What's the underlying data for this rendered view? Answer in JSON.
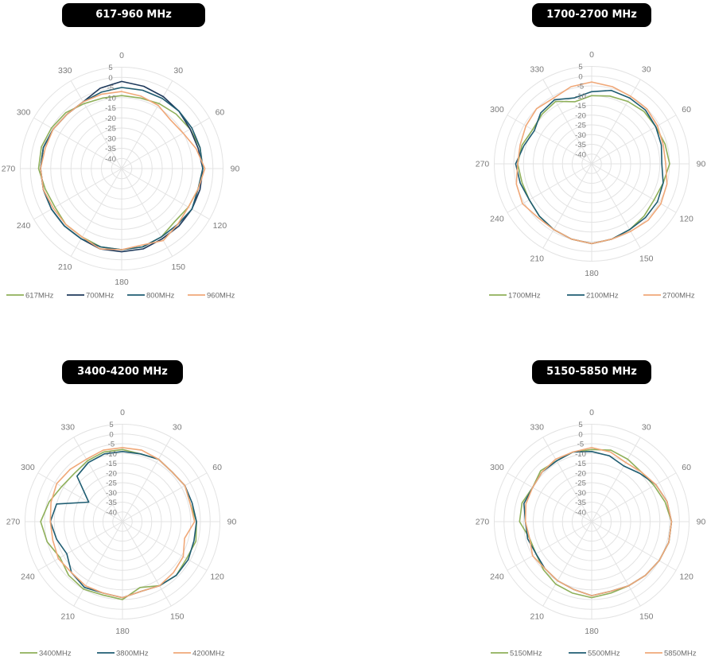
{
  "chart_data": [
    {
      "type": "polar",
      "title": "617-960 MHz",
      "angular_ticks": [
        "0",
        "30",
        "60",
        "90",
        "120",
        "150",
        "180",
        "210",
        "240",
        "270",
        "300",
        "330"
      ],
      "radial_ticks": [
        "5",
        "0",
        "-5",
        "-10",
        "-15",
        "-20",
        "-25",
        "-30",
        "-35",
        "-40"
      ],
      "rlim": [
        -45,
        5
      ],
      "grid": true,
      "legend_position": "bottom",
      "theta": [
        0,
        15,
        30,
        45,
        60,
        75,
        90,
        105,
        120,
        135,
        150,
        165,
        180,
        195,
        210,
        225,
        240,
        255,
        270,
        285,
        300,
        315,
        330,
        345
      ],
      "series": [
        {
          "name": "617MHz",
          "color": "#8fb05a",
          "values": [
            -9,
            -9,
            -8,
            -7,
            -6,
            -5,
            -5,
            -6,
            -7,
            -8,
            -6,
            -5,
            -5,
            -5,
            -6,
            -6,
            -7,
            -6,
            -4,
            -4,
            -5,
            -6,
            -8,
            -9
          ]
        },
        {
          "name": "700MHz",
          "color": "#1f3a5c",
          "values": [
            -2,
            -3,
            -4,
            -5,
            -6,
            -6,
            -5,
            -5,
            -5,
            -5,
            -5,
            -4,
            -4,
            -4,
            -5,
            -5,
            -5,
            -5,
            -5,
            -5,
            -6,
            -7,
            -7,
            -4
          ]
        },
        {
          "name": "800MHz",
          "color": "#1f5d72",
          "values": [
            -5,
            -5,
            -5,
            -5,
            -5,
            -5,
            -5,
            -6,
            -5,
            -6,
            -6,
            -5,
            -5,
            -5,
            -5,
            -5,
            -5,
            -5,
            -5,
            -5,
            -6,
            -7,
            -7,
            -6
          ]
        },
        {
          "name": "960MHz",
          "color": "#f0a878",
          "values": [
            -7,
            -8,
            -9,
            -11,
            -10,
            -7,
            -4,
            -6,
            -7,
            -6,
            -4,
            -6,
            -5,
            -4,
            -6,
            -6,
            -6,
            -5,
            -5,
            -6,
            -6,
            -7,
            -7,
            -7
          ]
        }
      ]
    },
    {
      "type": "polar",
      "title": "1700-2700 MHz",
      "angular_ticks": [
        "0",
        "30",
        "60",
        "90",
        "120",
        "150",
        "180",
        "210",
        "240",
        "270",
        "300",
        "330"
      ],
      "radial_ticks": [
        "5",
        "0",
        "-5",
        "-10",
        "-15",
        "-20",
        "-25",
        "-30",
        "-35",
        "-40"
      ],
      "rlim": [
        -45,
        5
      ],
      "grid": true,
      "legend_position": "bottom",
      "theta": [
        0,
        15,
        30,
        45,
        60,
        75,
        90,
        105,
        120,
        135,
        150,
        165,
        180,
        195,
        210,
        225,
        240,
        255,
        270,
        285,
        300,
        315,
        330,
        345
      ],
      "series": [
        {
          "name": "1700MHz",
          "color": "#8fb05a",
          "values": [
            -10,
            -9,
            -8,
            -7,
            -7,
            -6,
            -5,
            -7,
            -8,
            -7,
            -6,
            -5,
            -4,
            -5,
            -6,
            -7,
            -8,
            -8,
            -7,
            -8,
            -10,
            -9,
            -8,
            -12
          ]
        },
        {
          "name": "2100MHz",
          "color": "#1f5d72",
          "values": [
            -8,
            -6,
            -6,
            -6,
            -7,
            -8,
            -9,
            -7,
            -6,
            -6,
            -6,
            -5,
            -4,
            -5,
            -6,
            -7,
            -8,
            -7,
            -6,
            -9,
            -11,
            -8,
            -7,
            -10
          ]
        },
        {
          "name": "2700MHz",
          "color": "#f0a878",
          "values": [
            -3,
            -4,
            -5,
            -5,
            -6,
            -7,
            -7,
            -5,
            -4,
            -4,
            -5,
            -5,
            -4,
            -5,
            -6,
            -6,
            -4,
            -5,
            -7,
            -7,
            -6,
            -5,
            -6,
            -4
          ]
        }
      ]
    },
    {
      "type": "polar",
      "title": "3400-4200 MHz",
      "angular_ticks": [
        "0",
        "30",
        "60",
        "90",
        "120",
        "150",
        "180",
        "210",
        "240",
        "270",
        "300",
        "330"
      ],
      "radial_ticks": [
        "5",
        "0",
        "-5",
        "-10",
        "-15",
        "-20",
        "-25",
        "-30",
        "-35",
        "-40"
      ],
      "rlim": [
        -45,
        5
      ],
      "grid": true,
      "legend_position": "bottom",
      "theta": [
        0,
        15,
        30,
        45,
        60,
        75,
        90,
        105,
        120,
        135,
        150,
        165,
        180,
        195,
        210,
        225,
        240,
        255,
        270,
        285,
        300,
        315,
        330,
        345
      ],
      "series": [
        {
          "name": "3400MHz",
          "color": "#8fb05a",
          "values": [
            -8,
            -9,
            -8,
            -9,
            -8,
            -9,
            -7,
            -6,
            -7,
            -6,
            -7,
            -10,
            -5,
            -6,
            -5,
            -6,
            -8,
            -5,
            -3,
            -6,
            -9,
            -10,
            -9,
            -8
          ]
        },
        {
          "name": "3800MHz",
          "color": "#1f5d72",
          "values": [
            -9,
            -9,
            -8,
            -9,
            -8,
            -8,
            -7,
            -7,
            -6,
            -6,
            -7,
            -8,
            -6,
            -7,
            -6,
            -8,
            -12,
            -10,
            -8,
            -10,
            -25,
            -12,
            -10,
            -9
          ]
        },
        {
          "name": "4200MHz",
          "color": "#f0a878",
          "values": [
            -7,
            -7,
            -8,
            -9,
            -8,
            -9,
            -8,
            -12,
            -9,
            -8,
            -7,
            -8,
            -6,
            -7,
            -7,
            -8,
            -7,
            -8,
            -8,
            -7,
            -6,
            -7,
            -8,
            -7
          ]
        }
      ]
    },
    {
      "type": "polar",
      "title": "5150-5850 MHz",
      "angular_ticks": [
        "0",
        "30",
        "60",
        "90",
        "120",
        "150",
        "180",
        "210",
        "240",
        "270",
        "300",
        "330"
      ],
      "radial_ticks": [
        "5",
        "0",
        "-5",
        "-10",
        "-15",
        "-20",
        "-25",
        "-30",
        "-35",
        "-40"
      ],
      "rlim": [
        -45,
        5
      ],
      "grid": true,
      "legend_position": "bottom",
      "theta": [
        0,
        15,
        30,
        45,
        60,
        75,
        90,
        105,
        120,
        135,
        150,
        165,
        180,
        195,
        210,
        225,
        240,
        255,
        270,
        285,
        300,
        315,
        330,
        345
      ],
      "series": [
        {
          "name": "5150MHz",
          "color": "#8fb05a",
          "values": [
            -8,
            -7,
            -8,
            -9,
            -8,
            -6,
            -4,
            -4,
            -5,
            -6,
            -7,
            -7,
            -6,
            -7,
            -8,
            -10,
            -12,
            -12,
            -8,
            -8,
            -10,
            -8,
            -9,
            -8
          ]
        },
        {
          "name": "5500MHz",
          "color": "#1f5d72",
          "values": [
            -9,
            -10,
            -12,
            -10,
            -7,
            -5,
            -4,
            -4,
            -5,
            -6,
            -7,
            -8,
            -7,
            -9,
            -10,
            -11,
            -12,
            -11,
            -11,
            -9,
            -10,
            -9,
            -9,
            -8
          ]
        },
        {
          "name": "5850MHz",
          "color": "#f0a878",
          "values": [
            -7,
            -8,
            -10,
            -9,
            -7,
            -5,
            -4,
            -4,
            -5,
            -6,
            -7,
            -8,
            -7,
            -9,
            -10,
            -11,
            -10,
            -12,
            -11,
            -10,
            -10,
            -9,
            -8,
            -8
          ]
        }
      ]
    }
  ]
}
